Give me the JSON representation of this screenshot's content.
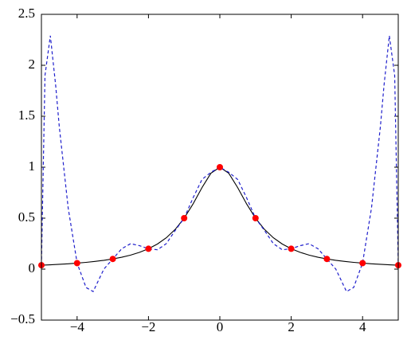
{
  "chart_data": {
    "type": "line",
    "xlim": [
      -5,
      5
    ],
    "ylim": [
      -0.5,
      2.5
    ],
    "xticks": [
      {
        "value": -4,
        "label": "−4"
      },
      {
        "value": -2,
        "label": "−2"
      },
      0,
      2,
      4
    ],
    "yticks": [
      {
        "value": -0.5,
        "label": "−0.5"
      },
      0,
      0.5,
      1,
      1.5,
      2,
      2.5
    ],
    "series": [
      {
        "kind": "line",
        "dash": false,
        "color": "#000000",
        "x": [
          -5,
          -4.75,
          -4.5,
          -4.25,
          -4,
          -3.75,
          -3.5,
          -3.25,
          -3,
          -2.75,
          -2.5,
          -2.25,
          -2,
          -1.75,
          -1.5,
          -1.25,
          -1,
          -0.75,
          -0.5,
          -0.25,
          0,
          0.25,
          0.5,
          0.75,
          1,
          1.25,
          1.5,
          1.75,
          2,
          2.25,
          2.5,
          2.75,
          3,
          3.25,
          3.5,
          3.75,
          4,
          4.25,
          4.5,
          4.75,
          5
        ],
        "values": [
          0.0385,
          0.0424,
          0.0471,
          0.0525,
          0.0588,
          0.0664,
          0.0755,
          0.0865,
          0.1,
          0.1168,
          0.1379,
          0.165,
          0.2,
          0.2462,
          0.3077,
          0.3902,
          0.5,
          0.64,
          0.8,
          0.9412,
          1,
          0.9412,
          0.8,
          0.64,
          0.5,
          0.3902,
          0.3077,
          0.2462,
          0.2,
          0.165,
          0.1379,
          0.1168,
          0.1,
          0.0865,
          0.0755,
          0.0664,
          0.0588,
          0.0525,
          0.0471,
          0.0424,
          0.0385
        ]
      },
      {
        "kind": "line",
        "dash": true,
        "color": "#1f1fcc",
        "x": [
          -5,
          -4.9,
          -4.75,
          -4.6,
          -4.5,
          -4.25,
          -4,
          -3.75,
          -3.55,
          -3.25,
          -3,
          -2.75,
          -2.5,
          -2.25,
          -2,
          -1.75,
          -1.5,
          -1.25,
          -1,
          -0.75,
          -0.5,
          -0.25,
          0,
          0.25,
          0.5,
          0.75,
          1,
          1.25,
          1.5,
          1.75,
          2,
          2.25,
          2.5,
          2.75,
          3,
          3.25,
          3.55,
          3.75,
          4,
          4.25,
          4.5,
          4.6,
          4.75,
          4.9,
          5
        ],
        "values": [
          0.04,
          1.9,
          2.29,
          1.8,
          1.4,
          0.6,
          0.06,
          -0.18,
          -0.22,
          0.0,
          0.1,
          0.2,
          0.25,
          0.23,
          0.2,
          0.19,
          0.25,
          0.38,
          0.5,
          0.7,
          0.88,
          0.95,
          1,
          0.95,
          0.88,
          0.7,
          0.5,
          0.38,
          0.25,
          0.19,
          0.2,
          0.23,
          0.25,
          0.2,
          0.1,
          0.0,
          -0.22,
          -0.18,
          0.06,
          0.6,
          1.4,
          1.8,
          2.29,
          1.9,
          0.04
        ]
      },
      {
        "kind": "scatter",
        "color": "#ff0000",
        "x": [
          -5,
          -4,
          -3,
          -2,
          -1,
          0,
          1,
          2,
          3,
          4,
          5
        ],
        "values": [
          0.0385,
          0.0588,
          0.1,
          0.2,
          0.5,
          1,
          0.5,
          0.2,
          0.1,
          0.0588,
          0.0385
        ]
      }
    ]
  }
}
